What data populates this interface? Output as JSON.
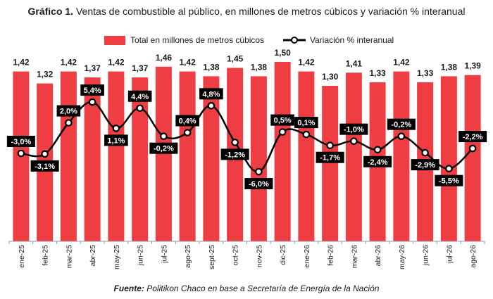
{
  "title": {
    "prefix": "Gráfico 1.",
    "text": "Ventas de combustible al público, en millones de metros cúbicos y variación % interanual"
  },
  "legend": {
    "bar_label": "Total en millones de metros cúbicos",
    "line_label": "Variación % interanual"
  },
  "source": {
    "prefix": "Fuente:",
    "text": "Politikon Chaco en base a Secretaría de Energía de la Nación"
  },
  "colors": {
    "bar": "#ee3e43",
    "line": "#000000",
    "label_box": "#000000",
    "label_text": "#ffffff"
  },
  "chart_data": {
    "type": "bar",
    "title": "Gráfico 1. Ventas de combustible al público, en millones de metros cúbicos y variación % interanual",
    "categories": [
      "ene-25",
      "feb-25",
      "mar-25",
      "abr-25",
      "may-25",
      "jun-25",
      "jul-25",
      "ago-25",
      "sept-25",
      "oct-25",
      "nov-25",
      "dic-25",
      "ene-26",
      "feb-26",
      "mar-26",
      "abr-26",
      "may-26",
      "jun-26",
      "jul-26",
      "ago-26"
    ],
    "series": [
      {
        "name": "Total en millones de metros cúbicos",
        "type": "bar",
        "axis": "left",
        "values": [
          1.42,
          1.32,
          1.42,
          1.37,
          1.42,
          1.37,
          1.46,
          1.42,
          1.38,
          1.45,
          1.38,
          1.5,
          1.42,
          1.3,
          1.41,
          1.33,
          1.42,
          1.33,
          1.38,
          1.39
        ],
        "labels": [
          "1,42",
          "1,32",
          "1,42",
          "1,37",
          "1,42",
          "1,37",
          "1,46",
          "1,42",
          "1,38",
          "1,45",
          "1,38",
          "1,50",
          "1,42",
          "1,30",
          "1,41",
          "1,33",
          "1,42",
          "1,33",
          "1,38",
          "1,39"
        ]
      },
      {
        "name": "Variación % interanual",
        "type": "line",
        "axis": "right",
        "values": [
          -3.0,
          -3.1,
          2.0,
          5.4,
          1.1,
          4.4,
          -0.2,
          0.4,
          4.8,
          -1.2,
          -6.0,
          0.5,
          0.1,
          -1.7,
          -1.0,
          -2.4,
          -0.2,
          -2.9,
          -5.5,
          -2.2
        ],
        "labels": [
          "-3,0%",
          "-3,1%",
          "2,0%",
          "5,4%",
          "1,1%",
          "4,4%",
          "-0,2%",
          "0,4%",
          "4,8%",
          "-1,2%",
          "-6,0%",
          "0,5%",
          "0,1%",
          "-1,7%",
          "-1,0%",
          "-2,4%",
          "-0,2%",
          "-2,9%",
          "-5,5%",
          "-2,2%"
        ]
      }
    ],
    "axes": {
      "left": {
        "visible": false,
        "ylim": [
          0,
          1.6
        ]
      },
      "right": {
        "visible": false,
        "ylim": [
          -17.4,
          11.4
        ]
      }
    },
    "grid": false,
    "legend_position": "top"
  }
}
